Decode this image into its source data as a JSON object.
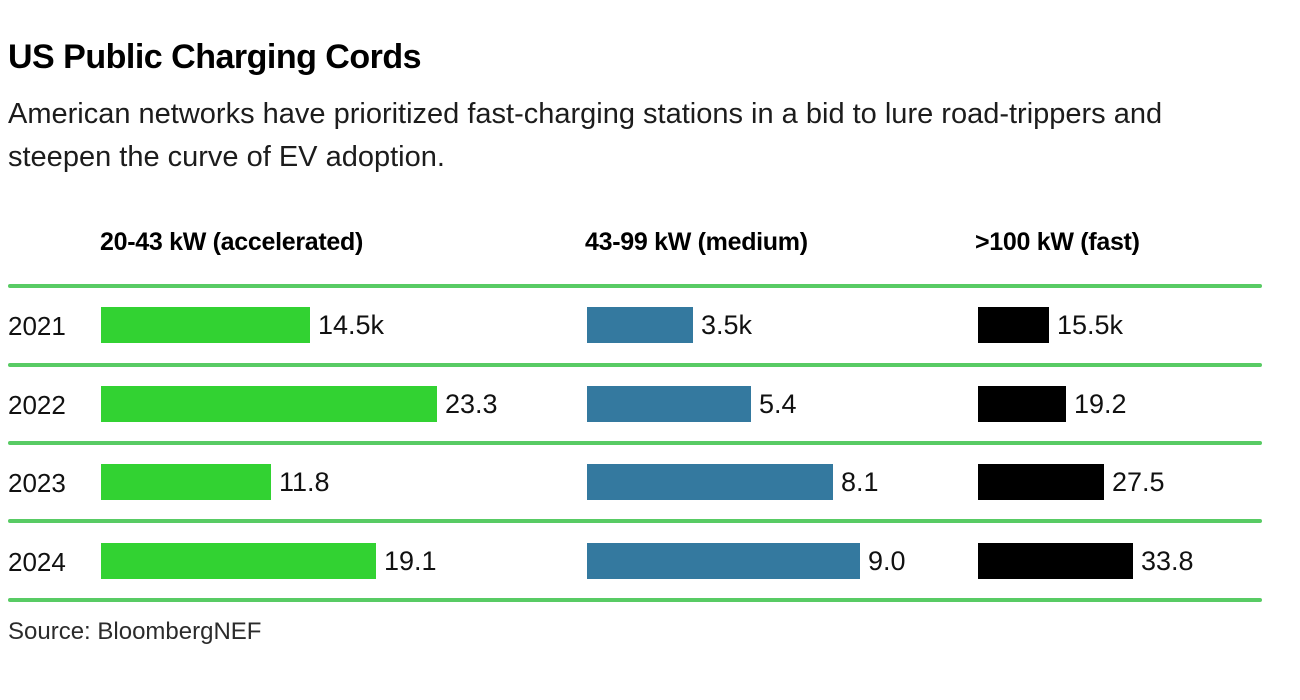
{
  "header": {
    "title": "US Public Charging Cords",
    "subtitle": "American networks have prioritized fast-charging stations in a bid to lure road-trippers and steepen the curve of EV adoption."
  },
  "source": "Source: BloombergNEF",
  "colors": {
    "accelerated_green": "#32d232",
    "medium_blue": "#34799f",
    "fast_black": "#000000",
    "divider_green": "#58cb64",
    "background": "#ffffff"
  },
  "chart_data": {
    "type": "bar",
    "orientation": "horizontal",
    "title": "US Public Charging Cords",
    "subtitle": "American networks have prioritized fast-charging stations in a bid to lure road-trippers and steepen the curve of EV adoption.",
    "source": "Source: BloombergNEF",
    "unit": "thousands of cords",
    "grid": "green horizontal row dividers",
    "legend_position": "column headers above each bar group",
    "categories": [
      "2021",
      "2022",
      "2023",
      "2024"
    ],
    "series": [
      {
        "name": "20-43 kW (accelerated)",
        "color": "#32d232",
        "values": [
          14.5,
          23.3,
          11.8,
          19.1
        ],
        "labels": [
          "14.5k",
          "23.3",
          "11.8",
          "19.1"
        ]
      },
      {
        "name": "43-99 kW (medium)",
        "color": "#34799f",
        "values": [
          3.5,
          5.4,
          8.1,
          9.0
        ],
        "labels": [
          "3.5k",
          "5.4",
          "8.1",
          "9.0"
        ]
      },
      {
        "name": ">100 kW (fast)",
        "color": "#000000",
        "values": [
          15.5,
          19.2,
          27.5,
          33.8
        ],
        "labels": [
          "15.5k",
          "19.2",
          "27.5",
          "33.8"
        ]
      }
    ]
  }
}
